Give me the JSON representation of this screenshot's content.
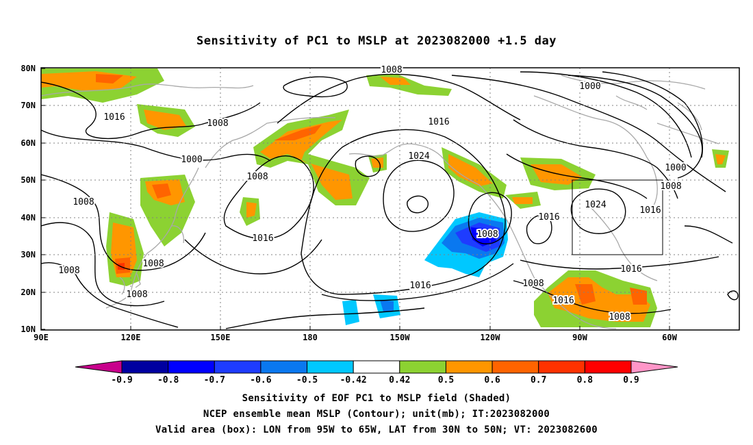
{
  "title": "Sensitivity of PC1 to MSLP at 2023082000 +1.5 day",
  "map": {
    "lat_labels": [
      "80N",
      "70N",
      "60N",
      "50N",
      "40N",
      "30N",
      "20N",
      "10N"
    ],
    "lon_labels": [
      "90E",
      "120E",
      "150E",
      "180",
      "150W",
      "120W",
      "90W",
      "60W"
    ],
    "valid_box": {
      "lon_from": "95W",
      "lon_to": "65W",
      "lat_from": "30N",
      "lat_to": "50N"
    }
  },
  "contour_labels": [
    {
      "text": "1008"
    },
    {
      "text": "1000"
    },
    {
      "text": "1016"
    },
    {
      "text": "1008"
    },
    {
      "text": "1016"
    },
    {
      "text": "1000"
    },
    {
      "text": "1024"
    },
    {
      "text": "1008"
    },
    {
      "text": "1008"
    },
    {
      "text": "1000"
    },
    {
      "text": "1008"
    },
    {
      "text": "1024"
    },
    {
      "text": "1016"
    },
    {
      "text": "1016"
    },
    {
      "text": "1008"
    },
    {
      "text": "1016"
    },
    {
      "text": "1008"
    },
    {
      "text": "1008"
    },
    {
      "text": "1008"
    },
    {
      "text": "1016"
    },
    {
      "text": "1016"
    },
    {
      "text": "1016"
    },
    {
      "text": "1008"
    }
  ],
  "colorbar": {
    "labels": [
      "-0.9",
      "-0.8",
      "-0.7",
      "-0.6",
      "-0.5",
      "-0.42",
      "0.42",
      "0.5",
      "0.6",
      "0.7",
      "0.8",
      "0.9"
    ],
    "colors": [
      "#c8008c",
      "#0000a0",
      "#0000ff",
      "#1e3cff",
      "#0a78f0",
      "#00c8ff",
      "#ffffff",
      "#8cd232",
      "#ff9600",
      "#ff6400",
      "#ff3200",
      "#ff0000",
      "#ff96c8"
    ]
  },
  "captions": [
    "Sensitivity of EOF PC1 to MSLP field (Shaded)",
    "NCEP ensemble mean MSLP (Contour); unit(mb); IT:2023082000",
    "Valid area (box): LON from 95W to 65W, LAT from 30N to 50N; VT: 2023082600"
  ]
}
